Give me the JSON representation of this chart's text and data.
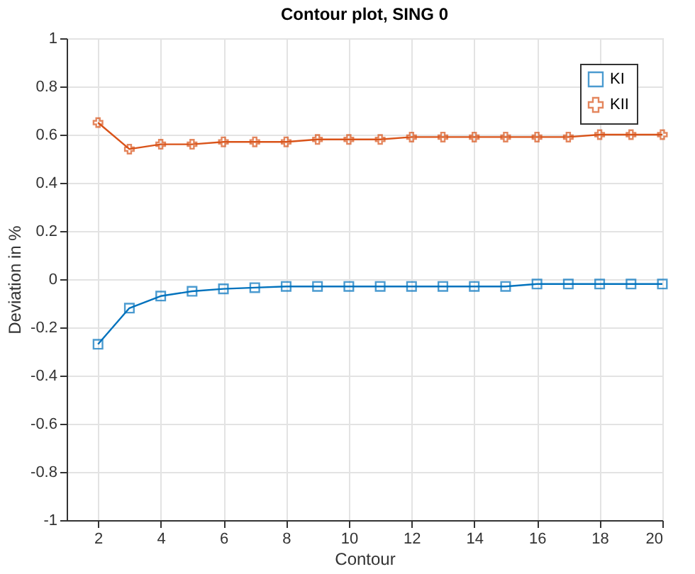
{
  "chart_data": {
    "type": "line",
    "title": "Contour plot, SING 0",
    "xlabel": "Contour",
    "ylabel": "Deviation in %",
    "x": [
      2,
      3,
      4,
      5,
      6,
      7,
      8,
      9,
      10,
      11,
      12,
      13,
      14,
      15,
      16,
      17,
      18,
      19,
      20
    ],
    "series": [
      {
        "name": "KI",
        "color": "#0072bd",
        "marker": "square",
        "values": [
          -0.27,
          -0.12,
          -0.07,
          -0.05,
          -0.04,
          -0.035,
          -0.03,
          -0.03,
          -0.03,
          -0.03,
          -0.03,
          -0.03,
          -0.03,
          -0.03,
          -0.02,
          -0.02,
          -0.02,
          -0.02,
          -0.02
        ]
      },
      {
        "name": "KII",
        "color": "#d95319",
        "marker": "cross",
        "values": [
          0.65,
          0.54,
          0.56,
          0.56,
          0.57,
          0.57,
          0.57,
          0.58,
          0.58,
          0.58,
          0.59,
          0.59,
          0.59,
          0.59,
          0.59,
          0.59,
          0.6,
          0.6,
          0.6
        ]
      }
    ],
    "xlim": [
      1,
      20
    ],
    "xticks": [
      2,
      4,
      6,
      8,
      10,
      12,
      14,
      16,
      18,
      20
    ],
    "ylim": [
      -1,
      1
    ],
    "yticks": [
      -1,
      -0.8,
      -0.6,
      -0.4,
      -0.2,
      0,
      0.2,
      0.4,
      0.6,
      0.8,
      1
    ],
    "grid": true,
    "legend": "top right",
    "line_style": "solid"
  }
}
